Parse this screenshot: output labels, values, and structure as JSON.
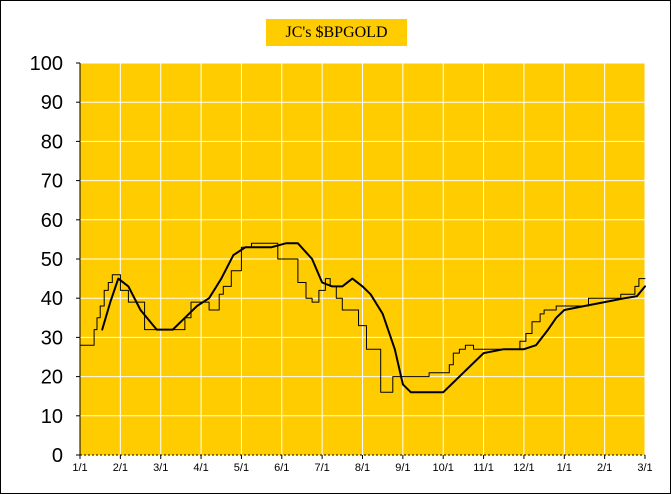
{
  "chart_data": {
    "type": "line",
    "title": "JC's $BPGOLD",
    "xlabel": "",
    "ylabel": "",
    "ylim": [
      0,
      100
    ],
    "y_ticks": [
      0,
      10,
      20,
      30,
      40,
      50,
      60,
      70,
      80,
      90,
      100
    ],
    "x_ticks": [
      "1/1",
      "2/1",
      "3/1",
      "4/1",
      "5/1",
      "6/1",
      "7/1",
      "8/1",
      "9/1",
      "10/1",
      "11/1",
      "12/1",
      "1/1",
      "2/1",
      "3/1"
    ],
    "xlim": [
      0,
      14
    ],
    "grid": true,
    "legend": "none",
    "colors": {
      "plot_background": "#ffcc00",
      "grid": "#ffffff",
      "line": "#000000"
    },
    "series": [
      {
        "values_x": [
          0,
          0.35,
          0.35,
          0.42,
          0.42,
          0.5,
          0.5,
          0.6,
          0.6,
          0.7,
          0.7,
          0.8,
          0.8,
          1.0,
          1.0,
          1.2,
          1.2,
          1.6,
          1.6,
          2.6,
          2.6,
          2.75,
          2.75,
          3.2,
          3.2,
          3.45,
          3.45,
          3.55,
          3.55,
          3.75,
          3.75,
          4.0,
          4.0,
          4.25,
          4.25,
          4.9,
          4.9,
          5.4,
          5.4,
          5.6,
          5.6,
          5.75,
          5.75,
          5.92,
          5.92,
          6.08,
          6.08,
          6.2,
          6.2,
          6.35,
          6.35,
          6.5,
          6.5,
          6.9,
          6.9,
          7.1,
          7.1,
          7.45,
          7.45,
          7.75,
          7.75,
          8.65,
          8.65,
          9.15,
          9.15,
          9.25,
          9.25,
          9.4,
          9.4,
          9.55,
          9.55,
          9.75,
          9.75,
          10.9,
          10.9,
          11.05,
          11.05,
          11.2,
          11.2,
          11.4,
          11.4,
          11.5,
          11.5,
          11.8,
          11.8,
          12.6,
          12.6,
          13.4,
          13.4,
          13.75,
          13.75,
          13.85,
          13.85,
          14.0
        ],
        "values_y": [
          28,
          28,
          32,
          32,
          35,
          35,
          38,
          38,
          42,
          42,
          44,
          44,
          46,
          46,
          42,
          42,
          39,
          39,
          32,
          32,
          35,
          35,
          39,
          39,
          37,
          37,
          41,
          41,
          43,
          43,
          47,
          47,
          53,
          53,
          54,
          54,
          50,
          50,
          44,
          44,
          40,
          40,
          39,
          39,
          42,
          42,
          45,
          45,
          43,
          43,
          40,
          40,
          37,
          37,
          33,
          33,
          27,
          27,
          16,
          16,
          20,
          20,
          21,
          21,
          23,
          23,
          26,
          26,
          27,
          27,
          28,
          28,
          27,
          27,
          29,
          29,
          31,
          31,
          34,
          34,
          36,
          36,
          37,
          37,
          38,
          38,
          40,
          40,
          41,
          41,
          43,
          43,
          45,
          45
        ]
      },
      {
        "values_x": [
          0.55,
          0.75,
          0.95,
          1.2,
          1.5,
          1.9,
          2.3,
          2.6,
          2.9,
          3.2,
          3.5,
          3.8,
          4.1,
          4.4,
          4.75,
          5.1,
          5.4,
          5.75,
          6.0,
          6.25,
          6.5,
          6.75,
          7.0,
          7.2,
          7.5,
          7.8,
          8.0,
          8.2,
          8.5,
          9.0,
          9.5,
          10.0,
          10.5,
          11.0,
          11.3,
          11.6,
          11.8,
          12.0,
          12.5,
          13.0,
          13.5,
          13.8,
          14.0
        ],
        "values_y": [
          32,
          39,
          45,
          43,
          37,
          32,
          32,
          35,
          38,
          40,
          45,
          51,
          53,
          53,
          53,
          54,
          54,
          50,
          44,
          43,
          43,
          45,
          43,
          41,
          36,
          27,
          18,
          16,
          16,
          16,
          21,
          26,
          27,
          27,
          28,
          32,
          35,
          37,
          38,
          39,
          40,
          40.5,
          43
        ]
      }
    ]
  }
}
